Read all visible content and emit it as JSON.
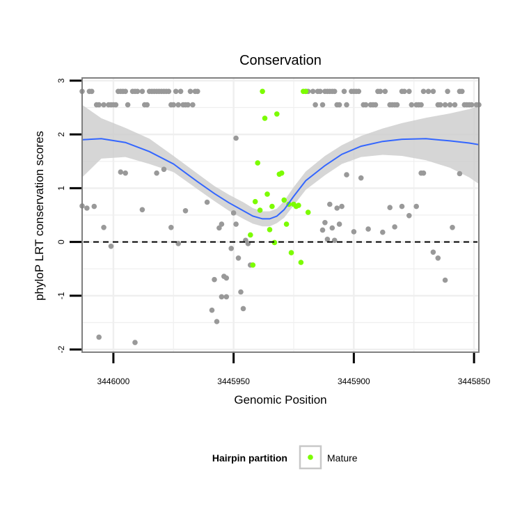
{
  "chart_data": {
    "type": "scatter",
    "title": "Conservation",
    "xlabel": "Genomic Position",
    "ylabel": "phyloP LRT conservation scores",
    "x_reversed": true,
    "xlim": [
      3446013,
      3445848
    ],
    "ylim": [
      -2.05,
      3.05
    ],
    "x_ticks": [
      3446000,
      3445950,
      3445900,
      3445850
    ],
    "y_ticks": [
      -2,
      -1,
      0,
      1,
      2,
      3
    ],
    "reference_line": {
      "y": 0,
      "style": "dashed",
      "color": "#000000"
    },
    "grid": true,
    "legend": {
      "title": "Hairpin partition",
      "position": "bottom",
      "entries": [
        {
          "label": "Mature",
          "color": "#7cfc00"
        }
      ]
    },
    "series": [
      {
        "color": "#999999",
        "points": [
          [
            3446013,
            2.8
          ],
          [
            3446010,
            2.8
          ],
          [
            3446009,
            2.8
          ],
          [
            3446007,
            2.55
          ],
          [
            3446006,
            2.55
          ],
          [
            3446004,
            2.55
          ],
          [
            3446002,
            2.55
          ],
          [
            3446001,
            2.55
          ],
          [
            3446000,
            2.55
          ],
          [
            3445999,
            2.55
          ],
          [
            3445998,
            2.8
          ],
          [
            3445997,
            2.8
          ],
          [
            3445996,
            2.8
          ],
          [
            3445995,
            2.8
          ],
          [
            3445994,
            2.55
          ],
          [
            3445992,
            2.8
          ],
          [
            3445991,
            2.8
          ],
          [
            3445990,
            2.8
          ],
          [
            3445988,
            2.8
          ],
          [
            3445987,
            2.55
          ],
          [
            3445986,
            2.55
          ],
          [
            3445985,
            2.8
          ],
          [
            3445984,
            2.8
          ],
          [
            3445983,
            2.8
          ],
          [
            3445982,
            2.8
          ],
          [
            3445981,
            2.8
          ],
          [
            3445980,
            2.8
          ],
          [
            3445979,
            2.8
          ],
          [
            3445978,
            2.8
          ],
          [
            3445977,
            2.8
          ],
          [
            3445976,
            2.55
          ],
          [
            3445975,
            2.55
          ],
          [
            3445974,
            2.8
          ],
          [
            3445973,
            2.55
          ],
          [
            3445972,
            2.8
          ],
          [
            3445971,
            2.55
          ],
          [
            3445970,
            2.55
          ],
          [
            3445969,
            2.55
          ],
          [
            3445968,
            2.8
          ],
          [
            3445967,
            2.55
          ],
          [
            3445966,
            2.8
          ],
          [
            3445965,
            2.8
          ],
          [
            3445920,
            2.8
          ],
          [
            3445919,
            2.8
          ],
          [
            3445917,
            2.8
          ],
          [
            3445916,
            2.55
          ],
          [
            3445915,
            2.8
          ],
          [
            3445914,
            2.8
          ],
          [
            3445913,
            2.55
          ],
          [
            3445912,
            2.8
          ],
          [
            3445911,
            2.8
          ],
          [
            3445910,
            2.8
          ],
          [
            3445909,
            2.8
          ],
          [
            3445908,
            2.8
          ],
          [
            3445907,
            2.55
          ],
          [
            3445906,
            2.55
          ],
          [
            3445904,
            2.8
          ],
          [
            3445903,
            2.55
          ],
          [
            3445901,
            2.8
          ],
          [
            3445900,
            2.8
          ],
          [
            3445899,
            2.8
          ],
          [
            3445898,
            2.8
          ],
          [
            3445896,
            2.55
          ],
          [
            3445895,
            2.55
          ],
          [
            3445893,
            2.55
          ],
          [
            3445892,
            2.55
          ],
          [
            3445891,
            2.55
          ],
          [
            3445890,
            2.8
          ],
          [
            3445889,
            2.8
          ],
          [
            3445887,
            2.8
          ],
          [
            3445885,
            2.55
          ],
          [
            3445884,
            2.55
          ],
          [
            3445883,
            2.55
          ],
          [
            3445882,
            2.55
          ],
          [
            3445880,
            2.8
          ],
          [
            3445879,
            2.8
          ],
          [
            3445877,
            2.8
          ],
          [
            3445876,
            2.55
          ],
          [
            3445874,
            2.55
          ],
          [
            3445873,
            2.55
          ],
          [
            3445872,
            2.55
          ],
          [
            3445871,
            2.8
          ],
          [
            3445869,
            2.8
          ],
          [
            3445867,
            2.8
          ],
          [
            3445865,
            2.55
          ],
          [
            3445864,
            2.55
          ],
          [
            3445862,
            2.55
          ],
          [
            3445861,
            2.8
          ],
          [
            3445860,
            2.55
          ],
          [
            3445858,
            2.55
          ],
          [
            3445856,
            2.8
          ],
          [
            3445855,
            2.8
          ],
          [
            3445854,
            2.55
          ],
          [
            3445853,
            2.55
          ],
          [
            3445852,
            2.55
          ],
          [
            3445851,
            2.55
          ],
          [
            3445849,
            2.55
          ],
          [
            3445848,
            2.55
          ],
          [
            3446013,
            0.67
          ],
          [
            3446011,
            0.63
          ],
          [
            3446008,
            0.66
          ],
          [
            3446006,
            -1.77
          ],
          [
            3446004,
            0.27
          ],
          [
            3446001,
            -0.08
          ],
          [
            3445997,
            1.3
          ],
          [
            3445995,
            1.28
          ],
          [
            3445991,
            -1.87
          ],
          [
            3445988,
            0.6
          ],
          [
            3445982,
            1.28
          ],
          [
            3445979,
            1.35
          ],
          [
            3445976,
            0.27
          ],
          [
            3445973,
            -0.03
          ],
          [
            3445970,
            0.58
          ],
          [
            3445961,
            0.74
          ],
          [
            3445959,
            -1.27
          ],
          [
            3445958,
            -0.7
          ],
          [
            3445957,
            -1.48
          ],
          [
            3445956,
            0.26
          ],
          [
            3445955,
            0.33
          ],
          [
            3445955,
            -1.02
          ],
          [
            3445954,
            -0.64
          ],
          [
            3445953,
            -1.02
          ],
          [
            3445953,
            -0.67
          ],
          [
            3445951,
            -0.12
          ],
          [
            3445950,
            0.54
          ],
          [
            3445949,
            1.93
          ],
          [
            3445949,
            0.33
          ],
          [
            3445948,
            -0.3
          ],
          [
            3445947,
            -0.93
          ],
          [
            3445946,
            -1.24
          ],
          [
            3445945,
            0.03
          ],
          [
            3445944,
            -0.03
          ],
          [
            3445943,
            -0.43
          ],
          [
            3445913,
            0.22
          ],
          [
            3445912,
            0.36
          ],
          [
            3445911,
            0.05
          ],
          [
            3445910,
            0.7
          ],
          [
            3445909,
            0.26
          ],
          [
            3445908,
            0.03
          ],
          [
            3445907,
            0.63
          ],
          [
            3445906,
            0.33
          ],
          [
            3445905,
            0.66
          ],
          [
            3445903,
            1.25
          ],
          [
            3445900,
            0.19
          ],
          [
            3445897,
            1.19
          ],
          [
            3445894,
            0.24
          ],
          [
            3445888,
            0.18
          ],
          [
            3445885,
            0.64
          ],
          [
            3445883,
            0.28
          ],
          [
            3445880,
            0.66
          ],
          [
            3445877,
            0.49
          ],
          [
            3445874,
            0.66
          ],
          [
            3445872,
            1.28
          ],
          [
            3445871,
            1.28
          ],
          [
            3445867,
            -0.19
          ],
          [
            3445865,
            -0.3
          ],
          [
            3445862,
            -0.71
          ],
          [
            3445859,
            0.27
          ],
          [
            3445856,
            1.27
          ]
        ]
      },
      {
        "name": "Mature",
        "color": "#7cfc00",
        "points": [
          [
            3445943,
            0.13
          ],
          [
            3445942,
            -0.43
          ],
          [
            3445941,
            0.75
          ],
          [
            3445940,
            1.47
          ],
          [
            3445939,
            0.59
          ],
          [
            3445938,
            2.8
          ],
          [
            3445937,
            2.3
          ],
          [
            3445936,
            0.89
          ],
          [
            3445935,
            0.23
          ],
          [
            3445934,
            0.66
          ],
          [
            3445933,
            -0.01
          ],
          [
            3445932,
            2.38
          ],
          [
            3445931,
            1.26
          ],
          [
            3445930,
            1.28
          ],
          [
            3445929,
            0.78
          ],
          [
            3445928,
            0.33
          ],
          [
            3445927,
            0.7
          ],
          [
            3445926,
            -0.2
          ],
          [
            3445925,
            0.7
          ],
          [
            3445924,
            0.66
          ],
          [
            3445923,
            0.68
          ],
          [
            3445922,
            -0.38
          ],
          [
            3445921,
            2.8
          ],
          [
            3445920,
            2.8
          ],
          [
            3445919,
            0.55
          ]
        ]
      }
    ],
    "smooth": {
      "color": "#3366ff",
      "band_color": "#cccccc",
      "x": [
        3446013,
        3446005,
        3445995,
        3445985,
        3445975,
        3445965,
        3445958,
        3445952,
        3445946,
        3445942,
        3445938,
        3445935,
        3445932,
        3445929,
        3445925,
        3445920,
        3445912,
        3445905,
        3445897,
        3445888,
        3445880,
        3445870,
        3445860,
        3445852,
        3445848
      ],
      "y": [
        1.9,
        1.92,
        1.85,
        1.68,
        1.45,
        1.12,
        0.9,
        0.73,
        0.58,
        0.48,
        0.43,
        0.43,
        0.48,
        0.6,
        0.85,
        1.14,
        1.42,
        1.63,
        1.78,
        1.87,
        1.91,
        1.92,
        1.88,
        1.84,
        1.81
      ],
      "lower": [
        1.2,
        1.55,
        1.58,
        1.45,
        1.3,
        0.98,
        0.76,
        0.58,
        0.43,
        0.34,
        0.29,
        0.29,
        0.35,
        0.45,
        0.68,
        0.97,
        1.24,
        1.45,
        1.58,
        1.62,
        1.6,
        1.52,
        1.38,
        1.2,
        1.08
      ],
      "upper": [
        2.55,
        2.3,
        2.12,
        1.92,
        1.6,
        1.27,
        1.04,
        0.88,
        0.74,
        0.63,
        0.57,
        0.57,
        0.62,
        0.76,
        1.02,
        1.31,
        1.6,
        1.8,
        1.97,
        2.11,
        2.21,
        2.31,
        2.39,
        2.47,
        2.53
      ]
    }
  }
}
